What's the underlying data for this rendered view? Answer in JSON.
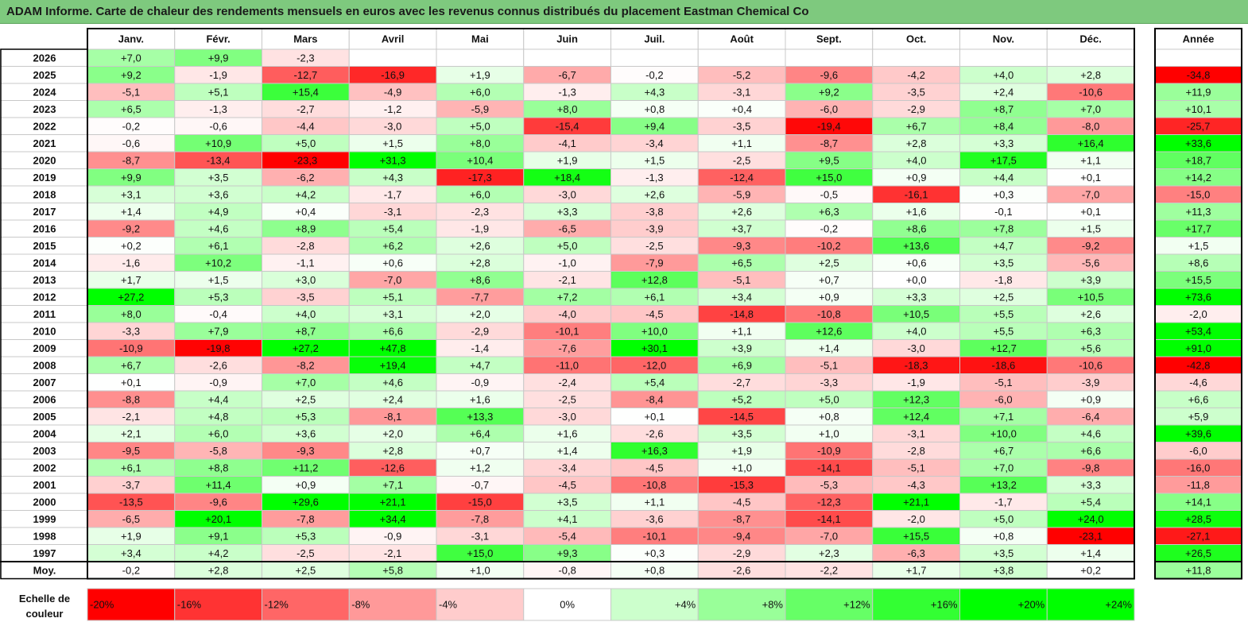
{
  "title": "ADAM Informe. Carte de chaleur des rendements mensuels en euros avec les revenus connus distribués du placement Eastman Chemical Co",
  "chart_data": {
    "type": "heatmap",
    "columns": [
      "Janv.",
      "Févr.",
      "Mars",
      "Avril",
      "Mai",
      "Juin",
      "Juil.",
      "Août",
      "Sept.",
      "Oct.",
      "Nov.",
      "Déc."
    ],
    "year_column": "Année",
    "rows": [
      {
        "label": "2026",
        "values": [
          "+7,0",
          "+9,9",
          "-2,3",
          "",
          "",
          "",
          "",
          "",
          "",
          "",
          "",
          ""
        ],
        "year": ""
      },
      {
        "label": "2025",
        "values": [
          "+9,2",
          "-1,9",
          "-12,7",
          "-16,9",
          "+1,9",
          "-6,7",
          "-0,2",
          "-5,2",
          "-9,6",
          "-4,2",
          "+4,0",
          "+2,8"
        ],
        "year": "-34,8"
      },
      {
        "label": "2024",
        "values": [
          "-5,1",
          "+5,1",
          "+15,4",
          "-4,9",
          "+6,0",
          "-1,3",
          "+4,3",
          "-3,1",
          "+9,2",
          "-3,5",
          "+2,4",
          "-10,6"
        ],
        "year": "+11,9"
      },
      {
        "label": "2023",
        "values": [
          "+6,5",
          "-1,3",
          "-2,7",
          "-1,2",
          "-5,9",
          "+8,0",
          "+0,8",
          "+0,4",
          "-6,0",
          "-2,9",
          "+8,7",
          "+7,0"
        ],
        "year": "+10,1"
      },
      {
        "label": "2022",
        "values": [
          "-0,2",
          "-0,6",
          "-4,4",
          "-3,0",
          "+5,0",
          "-15,4",
          "+9,4",
          "-3,5",
          "-19,4",
          "+6,7",
          "+8,4",
          "-8,0"
        ],
        "year": "-25,7"
      },
      {
        "label": "2021",
        "values": [
          "-0,6",
          "+10,9",
          "+5,0",
          "+1,5",
          "+8,0",
          "-4,1",
          "-3,4",
          "+1,1",
          "-8,7",
          "+2,8",
          "+3,3",
          "+16,4"
        ],
        "year": "+33,6"
      },
      {
        "label": "2020",
        "values": [
          "-8,7",
          "-13,4",
          "-23,3",
          "+31,3",
          "+10,4",
          "+1,9",
          "+1,5",
          "-2,5",
          "+9,5",
          "+4,0",
          "+17,5",
          "+1,1"
        ],
        "year": "+18,7"
      },
      {
        "label": "2019",
        "values": [
          "+9,9",
          "+3,5",
          "-6,2",
          "+4,3",
          "-17,3",
          "+18,4",
          "-1,3",
          "-12,4",
          "+15,0",
          "+0,9",
          "+4,4",
          "+0,1"
        ],
        "year": "+14,2"
      },
      {
        "label": "2018",
        "values": [
          "+3,1",
          "+3,6",
          "+4,2",
          "-1,7",
          "+6,0",
          "-3,0",
          "+2,6",
          "-5,9",
          "-0,5",
          "-16,1",
          "+0,3",
          "-7,0"
        ],
        "year": "-15,0"
      },
      {
        "label": "2017",
        "values": [
          "+1,4",
          "+4,9",
          "+0,4",
          "-3,1",
          "-2,3",
          "+3,3",
          "-3,8",
          "+2,6",
          "+6,3",
          "+1,6",
          "-0,1",
          "+0,1"
        ],
        "year": "+11,3"
      },
      {
        "label": "2016",
        "values": [
          "-9,2",
          "+4,6",
          "+8,9",
          "+5,4",
          "-1,9",
          "-6,5",
          "-3,9",
          "+3,7",
          "-0,2",
          "+8,6",
          "+7,8",
          "+1,5"
        ],
        "year": "+17,7"
      },
      {
        "label": "2015",
        "values": [
          "+0,2",
          "+6,1",
          "-2,8",
          "+6,2",
          "+2,6",
          "+5,0",
          "-2,5",
          "-9,3",
          "-10,2",
          "+13,6",
          "+4,7",
          "-9,2"
        ],
        "year": "+1,5"
      },
      {
        "label": "2014",
        "values": [
          "-1,6",
          "+10,2",
          "-1,1",
          "+0,6",
          "+2,8",
          "-1,0",
          "-7,9",
          "+6,5",
          "+2,5",
          "+0,6",
          "+3,5",
          "-5,6"
        ],
        "year": "+8,6"
      },
      {
        "label": "2013",
        "values": [
          "+1,7",
          "+1,5",
          "+3,0",
          "-7,0",
          "+8,6",
          "-2,1",
          "+12,8",
          "-5,1",
          "+0,7",
          "+0,0",
          "-1,8",
          "+3,9"
        ],
        "year": "+15,5"
      },
      {
        "label": "2012",
        "values": [
          "+27,2",
          "+5,3",
          "-3,5",
          "+5,1",
          "-7,7",
          "+7,2",
          "+6,1",
          "+3,4",
          "+0,9",
          "+3,3",
          "+2,5",
          "+10,5"
        ],
        "year": "+73,6"
      },
      {
        "label": "2011",
        "values": [
          "+8,0",
          "-0,4",
          "+4,0",
          "+3,1",
          "+2,0",
          "-4,0",
          "-4,5",
          "-14,8",
          "-10,8",
          "+10,5",
          "+5,5",
          "+2,6"
        ],
        "year": "-2,0"
      },
      {
        "label": "2010",
        "values": [
          "-3,3",
          "+7,9",
          "+8,7",
          "+6,6",
          "-2,9",
          "-10,1",
          "+10,0",
          "+1,1",
          "+12,6",
          "+4,0",
          "+5,5",
          "+6,3"
        ],
        "year": "+53,4"
      },
      {
        "label": "2009",
        "values": [
          "-10,9",
          "-19,8",
          "+27,2",
          "+47,8",
          "-1,4",
          "-7,6",
          "+30,1",
          "+3,9",
          "+1,4",
          "-3,0",
          "+12,7",
          "+5,6"
        ],
        "year": "+91,0"
      },
      {
        "label": "2008",
        "values": [
          "+6,7",
          "-2,6",
          "-8,2",
          "+19,4",
          "+4,7",
          "-11,0",
          "-12,0",
          "+6,9",
          "-5,1",
          "-18,3",
          "-18,6",
          "-10,6"
        ],
        "year": "-42,8"
      },
      {
        "label": "2007",
        "values": [
          "+0,1",
          "-0,9",
          "+7,0",
          "+4,6",
          "-0,9",
          "-2,4",
          "+5,4",
          "-2,7",
          "-3,3",
          "-1,9",
          "-5,1",
          "-3,9"
        ],
        "year": "-4,6"
      },
      {
        "label": "2006",
        "values": [
          "-8,8",
          "+4,4",
          "+2,5",
          "+2,4",
          "+1,6",
          "-2,5",
          "-8,4",
          "+5,2",
          "+5,0",
          "+12,3",
          "-6,0",
          "+0,9"
        ],
        "year": "+6,6"
      },
      {
        "label": "2005",
        "values": [
          "-2,1",
          "+4,8",
          "+5,3",
          "-8,1",
          "+13,3",
          "-3,0",
          "+0,1",
          "-14,5",
          "+0,8",
          "+12,4",
          "+7,1",
          "-6,4"
        ],
        "year": "+5,9"
      },
      {
        "label": "2004",
        "values": [
          "+2,1",
          "+6,0",
          "+3,6",
          "+2,0",
          "+6,4",
          "+1,6",
          "-2,6",
          "+3,5",
          "+1,0",
          "-3,1",
          "+10,0",
          "+4,6"
        ],
        "year": "+39,6"
      },
      {
        "label": "2003",
        "values": [
          "-9,5",
          "-5,8",
          "-9,3",
          "+2,8",
          "+0,7",
          "+1,4",
          "+16,3",
          "+1,9",
          "-10,9",
          "-2,8",
          "+6,7",
          "+6,6"
        ],
        "year": "-6,0"
      },
      {
        "label": "2002",
        "values": [
          "+6,1",
          "+8,8",
          "+11,2",
          "-12,6",
          "+1,2",
          "-3,4",
          "-4,5",
          "+1,0",
          "-14,1",
          "-5,1",
          "+7,0",
          "-9,8"
        ],
        "year": "-16,0"
      },
      {
        "label": "2001",
        "values": [
          "-3,7",
          "+11,4",
          "+0,9",
          "+7,1",
          "-0,7",
          "-4,5",
          "-10,8",
          "-15,3",
          "-5,3",
          "-4,3",
          "+13,2",
          "+3,3"
        ],
        "year": "-11,8"
      },
      {
        "label": "2000",
        "values": [
          "-13,5",
          "-9,6",
          "+29,6",
          "+21,1",
          "-15,0",
          "+3,5",
          "+1,1",
          "-4,5",
          "-12,3",
          "+21,1",
          "-1,7",
          "+5,4"
        ],
        "year": "+14,1"
      },
      {
        "label": "1999",
        "values": [
          "-6,5",
          "+20,1",
          "-7,8",
          "+34,4",
          "-7,8",
          "+4,1",
          "-3,6",
          "-8,7",
          "-14,1",
          "-2,0",
          "+5,0",
          "+24,0"
        ],
        "year": "+28,5"
      },
      {
        "label": "1998",
        "values": [
          "+1,9",
          "+9,1",
          "+5,3",
          "-0,9",
          "-3,1",
          "-5,4",
          "-10,1",
          "-9,4",
          "-7,0",
          "+15,5",
          "+0,8",
          "-23,1"
        ],
        "year": "-27,1"
      },
      {
        "label": "1997",
        "values": [
          "+3,4",
          "+4,2",
          "-2,5",
          "-2,1",
          "+15,0",
          "+9,3",
          "+0,3",
          "-2,9",
          "+2,3",
          "-6,3",
          "+3,5",
          "+1,4"
        ],
        "year": "+26,5"
      }
    ],
    "average": {
      "label": "Moy.",
      "values": [
        "-0,2",
        "+2,8",
        "+2,5",
        "+5,8",
        "+1,0",
        "-0,8",
        "+0,8",
        "-2,6",
        "-2,2",
        "+1,7",
        "+3,8",
        "+0,2"
      ],
      "year": "+11,8"
    },
    "scale_label": "Echelle de couleur",
    "scale": [
      {
        "label": "-20%",
        "value": -20,
        "align": "left"
      },
      {
        "label": "-16%",
        "value": -16,
        "align": "left"
      },
      {
        "label": "-12%",
        "value": -12,
        "align": "left"
      },
      {
        "label": "-8%",
        "value": -8,
        "align": "left"
      },
      {
        "label": "-4%",
        "value": -4,
        "align": "left"
      },
      {
        "label": "0%",
        "value": 0,
        "align": "center"
      },
      {
        "label": "+4%",
        "value": 4,
        "align": "right"
      },
      {
        "label": "+8%",
        "value": 8,
        "align": "right"
      },
      {
        "label": "+12%",
        "value": 12,
        "align": "right"
      },
      {
        "label": "+16%",
        "value": 16,
        "align": "right"
      },
      {
        "label": "+20%",
        "value": 20,
        "align": "right"
      },
      {
        "label": "+24%",
        "value": 24,
        "align": "right"
      }
    ],
    "colors": {
      "negative": "#ff0000",
      "neutral": "#ffffff",
      "positive": "#00ff00",
      "title_bar": "#7ec97e",
      "grid": "#c8c8c8"
    }
  }
}
